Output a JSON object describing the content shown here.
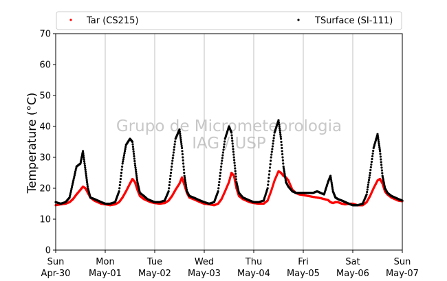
{
  "chart_data": {
    "type": "scatter",
    "title": "",
    "ylabel": "Temperature (°C)",
    "xlabel": "",
    "ylim": [
      0,
      70
    ],
    "y_ticks": [
      0,
      10,
      20,
      30,
      40,
      50,
      60,
      70
    ],
    "xlim_days": [
      0,
      7
    ],
    "x_ticks": [
      {
        "line1": "Sun",
        "line2": "Apr-30"
      },
      {
        "line1": "Mon",
        "line2": "May-01"
      },
      {
        "line1": "Tue",
        "line2": "May-02"
      },
      {
        "line1": "Wed",
        "line2": "May-03"
      },
      {
        "line1": "Thu",
        "line2": "May-04"
      },
      {
        "line1": "Fri",
        "line2": "May-05"
      },
      {
        "line1": "Sat",
        "line2": "May-06"
      },
      {
        "line1": "Sun",
        "line2": "May-07"
      }
    ],
    "grid": "vertical",
    "legend_placement": "top",
    "watermark": {
      "line1": "Grupo de Micrometeorologia",
      "line2": "IAG / USP"
    },
    "series": [
      {
        "name": "Tar (CS215)",
        "color": "#ff0000",
        "x_days": [
          0.0,
          0.1,
          0.2,
          0.28,
          0.35,
          0.42,
          0.5,
          0.55,
          0.6,
          0.65,
          0.7,
          0.78,
          0.85,
          0.92,
          1.0,
          1.1,
          1.2,
          1.28,
          1.35,
          1.42,
          1.5,
          1.55,
          1.6,
          1.65,
          1.7,
          1.78,
          1.85,
          1.92,
          2.0,
          2.1,
          2.2,
          2.28,
          2.35,
          2.42,
          2.5,
          2.55,
          2.6,
          2.65,
          2.7,
          2.78,
          2.85,
          2.92,
          3.0,
          3.1,
          3.2,
          3.28,
          3.35,
          3.42,
          3.5,
          3.55,
          3.6,
          3.65,
          3.7,
          3.78,
          3.85,
          3.92,
          4.0,
          4.1,
          4.2,
          4.28,
          4.35,
          4.42,
          4.5,
          4.55,
          4.6,
          4.65,
          4.7,
          4.78,
          4.85,
          4.92,
          5.0,
          5.1,
          5.2,
          5.28,
          5.35,
          5.42,
          5.5,
          5.55,
          5.6,
          5.65,
          5.7,
          5.78,
          5.85,
          5.92,
          6.0,
          6.1,
          6.2,
          6.28,
          6.35,
          6.42,
          6.5,
          6.55,
          6.6,
          6.65,
          6.7,
          6.78,
          6.85,
          6.92,
          7.0
        ],
        "y": [
          14.5,
          14.8,
          15.0,
          15.5,
          16.5,
          18.0,
          19.5,
          20.5,
          20.0,
          18.5,
          17.0,
          16.0,
          15.5,
          15.0,
          14.8,
          14.5,
          14.8,
          15.5,
          17.0,
          19.0,
          21.5,
          23.0,
          22.0,
          19.5,
          17.5,
          16.5,
          16.0,
          15.5,
          15.2,
          15.0,
          15.2,
          16.0,
          17.5,
          19.5,
          21.5,
          23.5,
          21.0,
          18.5,
          17.0,
          16.5,
          16.0,
          15.5,
          15.0,
          14.8,
          14.5,
          15.0,
          16.5,
          19.0,
          22.0,
          25.0,
          24.0,
          20.0,
          17.5,
          16.5,
          16.0,
          15.5,
          15.2,
          15.0,
          15.0,
          16.0,
          19.0,
          22.5,
          25.5,
          25.0,
          24.0,
          23.5,
          22.5,
          19.5,
          18.5,
          18.0,
          17.8,
          17.5,
          17.2,
          17.0,
          16.8,
          16.5,
          16.2,
          15.5,
          15.2,
          15.5,
          15.5,
          15.0,
          14.8,
          15.0,
          15.0,
          14.5,
          14.5,
          15.5,
          17.5,
          20.0,
          22.5,
          23.0,
          21.5,
          19.0,
          18.0,
          17.0,
          16.5,
          16.0,
          15.8
        ]
      },
      {
        "name": "TSurface (SI-111)",
        "color": "#000000",
        "x_days": [
          0.0,
          0.1,
          0.2,
          0.28,
          0.35,
          0.42,
          0.5,
          0.55,
          0.6,
          0.65,
          0.7,
          0.78,
          0.85,
          0.92,
          1.0,
          1.1,
          1.2,
          1.28,
          1.35,
          1.42,
          1.5,
          1.55,
          1.6,
          1.65,
          1.7,
          1.78,
          1.85,
          1.92,
          2.0,
          2.1,
          2.2,
          2.28,
          2.35,
          2.42,
          2.5,
          2.55,
          2.6,
          2.65,
          2.7,
          2.78,
          2.85,
          2.92,
          3.0,
          3.1,
          3.2,
          3.28,
          3.35,
          3.42,
          3.5,
          3.55,
          3.6,
          3.65,
          3.7,
          3.78,
          3.85,
          3.92,
          4.0,
          4.1,
          4.2,
          4.28,
          4.35,
          4.42,
          4.5,
          4.55,
          4.6,
          4.65,
          4.7,
          4.78,
          4.85,
          4.92,
          5.0,
          5.1,
          5.2,
          5.28,
          5.35,
          5.42,
          5.5,
          5.55,
          5.6,
          5.65,
          5.7,
          5.78,
          5.85,
          5.92,
          6.0,
          6.1,
          6.2,
          6.28,
          6.35,
          6.42,
          6.5,
          6.55,
          6.6,
          6.65,
          6.7,
          6.78,
          6.85,
          6.92,
          7.0
        ],
        "y": [
          15.5,
          15.0,
          15.5,
          17.0,
          22.0,
          27.0,
          28.0,
          32.0,
          26.0,
          20.0,
          17.0,
          16.5,
          16.0,
          15.5,
          15.0,
          15.0,
          15.5,
          19.0,
          28.0,
          34.0,
          36.0,
          35.0,
          28.0,
          22.0,
          18.5,
          17.5,
          16.5,
          16.0,
          15.5,
          15.5,
          16.0,
          19.0,
          28.0,
          36.0,
          39.0,
          33.0,
          24.0,
          19.0,
          17.5,
          17.0,
          16.5,
          16.0,
          15.5,
          15.0,
          15.5,
          19.0,
          28.0,
          36.0,
          40.0,
          38.0,
          30.0,
          22.0,
          18.5,
          17.0,
          16.5,
          16.0,
          15.5,
          15.5,
          16.0,
          20.0,
          30.0,
          38.0,
          42.0,
          36.0,
          27.0,
          22.0,
          20.5,
          19.0,
          18.5,
          18.5,
          18.5,
          18.5,
          18.5,
          19.0,
          18.5,
          18.0,
          22.0,
          24.0,
          19.0,
          17.0,
          16.5,
          16.0,
          15.5,
          15.0,
          14.5,
          14.5,
          15.0,
          18.0,
          25.0,
          33.0,
          37.5,
          32.0,
          24.0,
          20.0,
          18.5,
          17.5,
          17.0,
          16.5,
          16.0
        ]
      }
    ]
  }
}
